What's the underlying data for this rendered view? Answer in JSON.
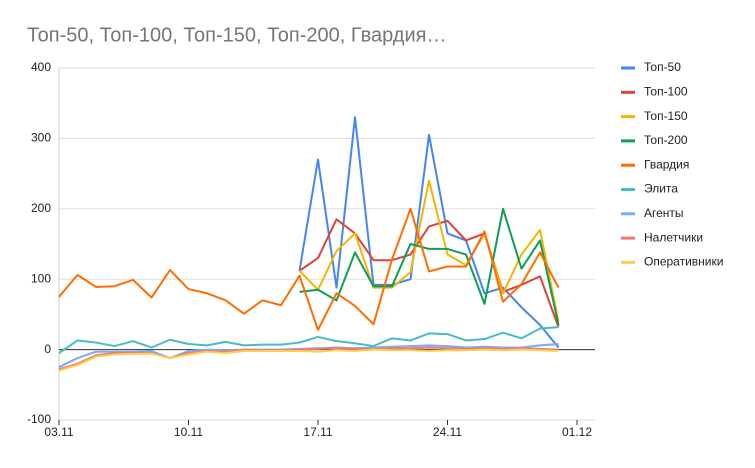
{
  "chart_data": {
    "type": "line",
    "title": "Топ-50, Топ-100, Топ-150, Топ-200, Гвардия…",
    "categories": [
      "03.11",
      null,
      null,
      null,
      null,
      null,
      null,
      "10.11",
      null,
      null,
      null,
      null,
      null,
      null,
      "17.11",
      null,
      null,
      null,
      null,
      null,
      null,
      "24.11",
      null,
      null,
      null,
      null,
      null,
      null,
      "01.12"
    ],
    "ylim": [
      -100,
      400
    ],
    "yticks": [
      -100,
      0,
      100,
      200,
      300,
      400
    ],
    "grid": true,
    "legend": "right",
    "series": [
      {
        "name": "Топ-50",
        "color": "#4285f4",
        "values": [
          null,
          null,
          null,
          null,
          null,
          null,
          null,
          null,
          null,
          null,
          null,
          null,
          null,
          112,
          270,
          88,
          330,
          92,
          92,
          100,
          305,
          165,
          155,
          80,
          88,
          60,
          35,
          3,
          null
        ]
      },
      {
        "name": "Топ-100",
        "color": "#db4437",
        "values": [
          null,
          null,
          null,
          null,
          null,
          null,
          null,
          null,
          null,
          null,
          null,
          null,
          null,
          112,
          130,
          185,
          165,
          127,
          127,
          135,
          175,
          183,
          155,
          165,
          82,
          92,
          104,
          32,
          null
        ]
      },
      {
        "name": "Топ-150",
        "color": "#f4b400",
        "values": [
          null,
          null,
          null,
          null,
          null,
          null,
          null,
          null,
          null,
          null,
          null,
          null,
          null,
          112,
          85,
          140,
          165,
          88,
          88,
          110,
          240,
          135,
          120,
          165,
          80,
          135,
          170,
          40,
          null
        ]
      },
      {
        "name": "Топ-200",
        "color": "#0f9d58",
        "values": [
          null,
          null,
          null,
          null,
          null,
          null,
          null,
          null,
          null,
          null,
          null,
          null,
          null,
          82,
          85,
          70,
          138,
          90,
          90,
          150,
          143,
          143,
          135,
          65,
          200,
          115,
          155,
          35,
          null
        ]
      },
      {
        "name": "Гвардия",
        "color": "#ff6d00",
        "values": [
          75,
          106,
          89,
          90,
          99,
          74,
          113,
          86,
          80,
          70,
          51,
          70,
          63,
          105,
          28,
          80,
          62,
          36,
          128,
          200,
          111,
          118,
          118,
          168,
          68,
          93,
          138,
          88,
          null
        ]
      },
      {
        "name": "Элита",
        "color": "#46bdc6",
        "values": [
          -5,
          13,
          10,
          5,
          12,
          3,
          14,
          8,
          6,
          11,
          6,
          7,
          7,
          10,
          18,
          12,
          9,
          5,
          16,
          13,
          23,
          22,
          13,
          15,
          24,
          16,
          30,
          32,
          null
        ]
      },
      {
        "name": "Агенты",
        "color": "#7baaf7",
        "values": [
          -25,
          -12,
          -3,
          -3,
          -3,
          -2,
          -12,
          -2,
          0,
          -1,
          0,
          0,
          0,
          1,
          2,
          3,
          2,
          3,
          4,
          5,
          6,
          5,
          3,
          4,
          3,
          3,
          6,
          8,
          null
        ]
      },
      {
        "name": "Налетчики",
        "color": "#f07b72",
        "values": [
          -28,
          -20,
          -8,
          -5,
          -5,
          -5,
          -12,
          -5,
          -2,
          -3,
          0,
          -1,
          -1,
          0,
          1,
          2,
          1,
          1,
          2,
          2,
          3,
          2,
          1,
          2,
          1,
          2,
          1,
          0,
          null
        ]
      },
      {
        "name": "Оперативники",
        "color": "#fcd04f",
        "values": [
          -30,
          -22,
          -10,
          -7,
          -6,
          -6,
          -12,
          -7,
          -3,
          -5,
          -2,
          -2,
          -2,
          -2,
          -3,
          -1,
          -2,
          0,
          -1,
          -1,
          -2,
          -1,
          -1,
          0,
          -1,
          0,
          -1,
          -2,
          null
        ]
      }
    ]
  }
}
